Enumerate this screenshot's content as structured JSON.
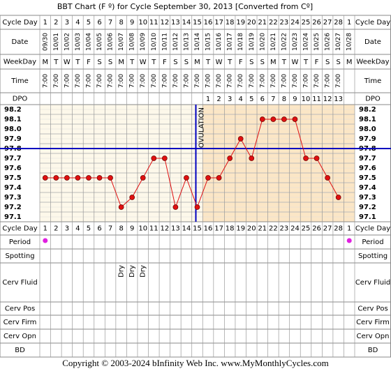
{
  "chart_data": {
    "type": "line",
    "title": "BBT Chart (F º) for Cycle September 30, 2013  [Converted from Cº]",
    "row_labels": [
      "Cycle Day",
      "Date",
      "WeekDay",
      "Time",
      "DPO",
      "Cycle Day",
      "Period",
      "Spotting",
      "Cerv Fluid",
      "Cerv Pos",
      "Cerv Firm",
      "Cerv Opn",
      "BD"
    ],
    "categories": [
      1,
      2,
      3,
      4,
      5,
      6,
      7,
      8,
      9,
      10,
      11,
      12,
      13,
      14,
      15,
      16,
      17,
      18,
      19,
      20,
      21,
      22,
      23,
      24,
      25,
      26,
      27,
      28,
      1
    ],
    "dates": [
      "09/30",
      "10/01",
      "10/02",
      "10/03",
      "10/04",
      "10/05",
      "10/06",
      "10/07",
      "10/08",
      "10/09",
      "10/10",
      "10/11",
      "10/12",
      "10/13",
      "10/14",
      "10/15",
      "10/16",
      "10/17",
      "10/18",
      "10/19",
      "10/20",
      "10/21",
      "10/22",
      "10/23",
      "10/24",
      "10/25",
      "10/26",
      "10/27",
      "10/28"
    ],
    "weekdays": [
      "M",
      "T",
      "W",
      "T",
      "F",
      "S",
      "S",
      "M",
      "T",
      "W",
      "T",
      "F",
      "S",
      "S",
      "M",
      "T",
      "W",
      "T",
      "F",
      "S",
      "S",
      "M",
      "T",
      "W",
      "T",
      "F",
      "S",
      "S",
      "M"
    ],
    "times": [
      "7:00",
      "7:00",
      "7:00",
      "7:00",
      "7:00",
      "7:00",
      "7:00",
      "7:00",
      "7:00",
      "7:00",
      "7:00",
      "7:00",
      "7:00",
      "7:00",
      "7:00",
      "7:00",
      "7:00",
      "7:00",
      "7:00",
      "7:00",
      "7:00",
      "7:00",
      "7:00",
      "7:00",
      "7:00",
      "7:00",
      "7:00",
      "7:00",
      null
    ],
    "dpo": [
      null,
      null,
      null,
      null,
      null,
      null,
      null,
      null,
      null,
      null,
      null,
      null,
      null,
      null,
      null,
      1,
      2,
      3,
      4,
      5,
      6,
      7,
      8,
      9,
      10,
      11,
      12,
      13,
      null
    ],
    "values": [
      97.5,
      97.5,
      97.5,
      97.5,
      97.5,
      97.5,
      97.5,
      97.2,
      97.3,
      97.5,
      97.7,
      97.7,
      97.2,
      97.5,
      97.2,
      97.5,
      97.5,
      97.7,
      97.9,
      97.7,
      98.1,
      98.1,
      98.1,
      98.1,
      97.7,
      97.7,
      97.5,
      97.3,
      null
    ],
    "color": "#e01010",
    "ylim": [
      97.05,
      98.25
    ],
    "yticks": [
      98.2,
      98.1,
      {
        "value": 98,
        "label": "98.0"
      },
      97.9,
      97.8,
      97.7,
      97.6,
      97.5,
      97.4,
      97.3,
      97.2,
      97.1
    ],
    "coverline": 97.8,
    "coverline_color": "#0000c0",
    "ovulation": {
      "label": "OVULATION",
      "day": 15
    },
    "period": [
      true,
      false,
      false,
      false,
      false,
      false,
      false,
      false,
      false,
      false,
      false,
      false,
      false,
      false,
      false,
      false,
      false,
      false,
      false,
      false,
      false,
      false,
      false,
      false,
      false,
      false,
      false,
      false,
      true
    ],
    "cerv_fluid": [
      null,
      null,
      null,
      null,
      null,
      null,
      null,
      "Dry",
      "Dry",
      "Dry",
      null,
      null,
      null,
      null,
      null,
      null,
      null,
      null,
      null,
      null,
      null,
      null,
      null,
      null,
      null,
      null,
      null,
      null,
      null
    ],
    "footer": "Copyright © 2003-2024 bInfinity Web Inc.    www.MyMonthlyCycles.com"
  }
}
